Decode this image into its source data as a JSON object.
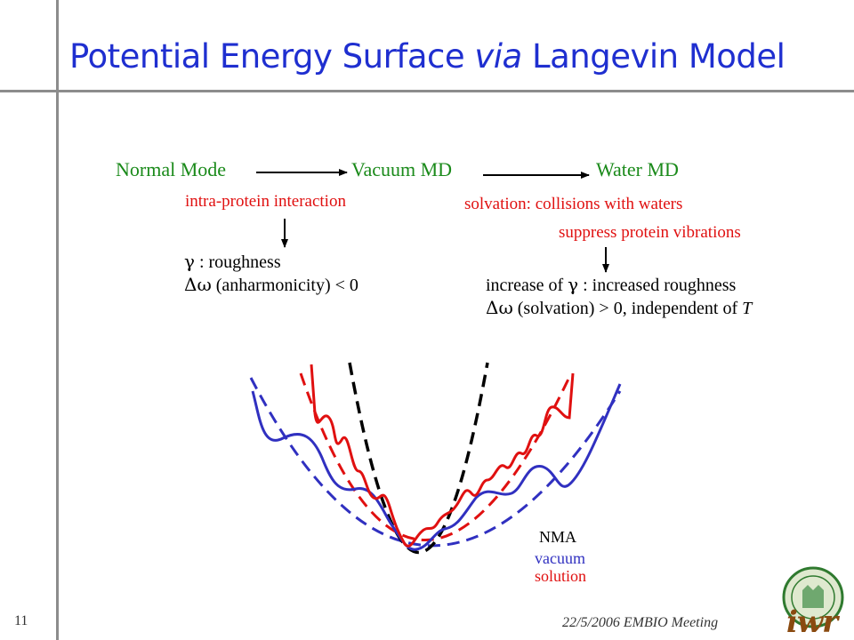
{
  "slide": {
    "title_pre": "Potential Energy Surface ",
    "title_italic": "via",
    "title_post": " Langevin Model",
    "page_number": "11",
    "footer": "22/5/2006 EMBIO Meeting",
    "logo_text": "iwr"
  },
  "flow": {
    "normal_mode": "Normal Mode",
    "vacuum_md": "Vacuum MD",
    "water_md": "Water MD"
  },
  "left_notes": {
    "interaction": "intra-protein interaction",
    "gamma_symbol": "γ",
    "gamma_text": " : roughness",
    "delta_symbol": "Δω",
    "delta_text": " (anharmonicity) < 0"
  },
  "right_notes": {
    "solvation": "solvation: collisions with waters",
    "suppress": "suppress protein vibrations",
    "increase_pre": "increase of ",
    "gamma_symbol": "γ",
    "increase_post": " : increased roughness",
    "delta_symbol": "Δω",
    "delta_text_pre": " (solvation) > 0, independent of ",
    "delta_text_T": "T"
  },
  "legend": {
    "nma": "NMA",
    "vacuum": "vacuum",
    "solution": "solution",
    "colors": {
      "nma": "#000000",
      "vacuum": "#e01010",
      "solution": "#3030c0"
    }
  }
}
